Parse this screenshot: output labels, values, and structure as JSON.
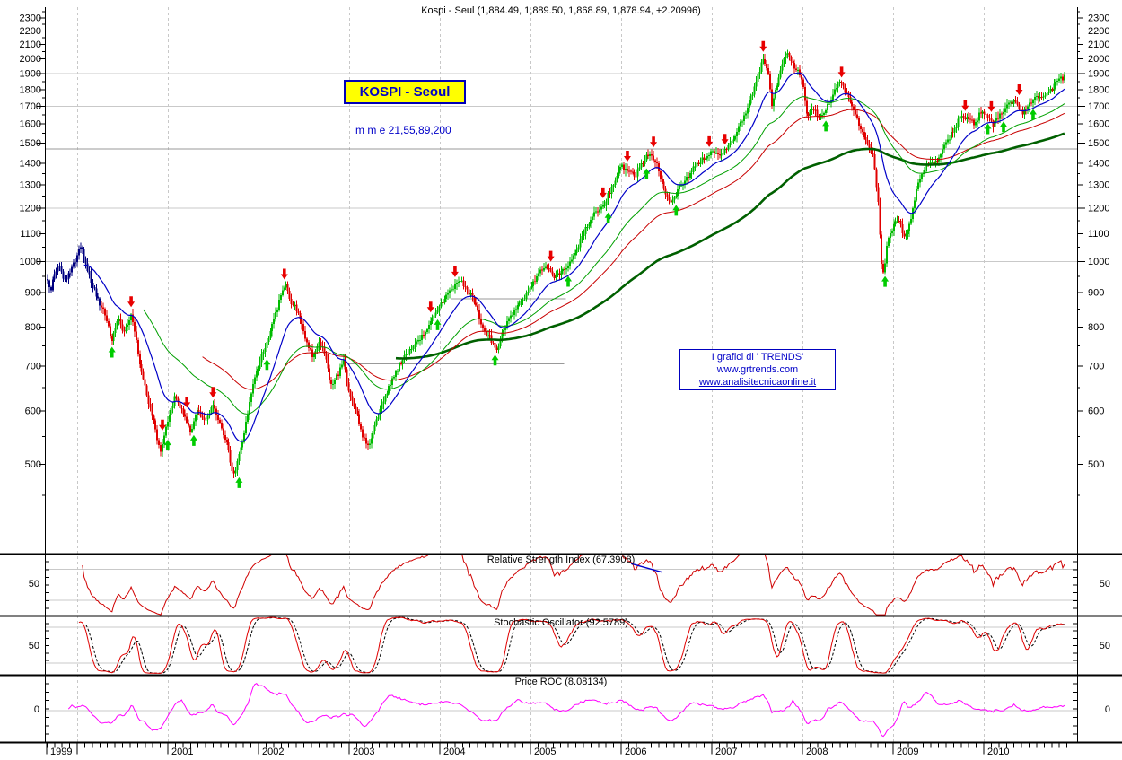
{
  "title": "Kospi - Seul (1,884.49, 1,889.50, 1,868.89, 1,878.94, +2.20996)",
  "quote": {
    "open": 1884.49,
    "high": 1889.5,
    "low": 1868.89,
    "close": 1878.94,
    "change": 2.20996
  },
  "overlays": {
    "symbol_box": "KOSPI - Seoul",
    "mme_label": "m m e 21,55,89,200",
    "credit": {
      "line1": "I grafici di ' TRENDS'",
      "line2": "www.grtrends.com",
      "line3": "www.analisitecnicaonline.it"
    }
  },
  "panels": {
    "rsi": {
      "label": "Relative Strength Index (67.3908)",
      "value": 67.3908,
      "left_tick": "50",
      "right_tick": "50",
      "gridlines": [
        70,
        30
      ]
    },
    "stoch": {
      "label": "Stochastic Oscillator (92.5789)",
      "value": 92.5789,
      "left_tick": "50",
      "right_tick": "50",
      "gridlines": [
        80,
        20
      ]
    },
    "roc": {
      "label": "Price ROC (8.08134)",
      "value": 8.08134,
      "left_tick": "0",
      "right_tick": "0",
      "gridlines": [
        0
      ]
    }
  },
  "chart_data": {
    "type": "candlestick",
    "symbol": "KOSPI - Seoul",
    "frequency": "weekly",
    "log_scale": true,
    "axis": {
      "t0": 1999.673,
      "t1": 2010.89,
      "price_labels": [
        500,
        600,
        700,
        800,
        900,
        1000,
        1100,
        1200,
        1300,
        1400,
        1500,
        1600,
        1700,
        1800,
        1900,
        2000,
        2100,
        2200,
        2300
      ],
      "grid_prices": [
        1000,
        1200,
        1700,
        1900
      ],
      "long_tick_prices": [
        1000,
        1200,
        1500,
        1700,
        1900
      ],
      "resistance_price": 1470,
      "year_labels": [
        1999,
        2001,
        2002,
        2003,
        2004,
        2005,
        2006,
        2007,
        2008,
        2009,
        2010
      ]
    },
    "support_segments": [
      {
        "price": 705,
        "t1": 2002.99,
        "t2": 2005.37
      },
      {
        "price": 880,
        "t1": 2004.12,
        "t2": 2005.39
      }
    ],
    "moving_averages": {
      "label": "mme 21,55,89,200",
      "periods": [
        21,
        55,
        89,
        200
      ]
    },
    "indicators": {
      "rsi_period": 14,
      "stoch_period": 14,
      "stoch_slowing": 5,
      "roc_period": 12
    },
    "rsi_trendline": {
      "t1": 2006.11,
      "v1": 77,
      "t2": 2006.45,
      "v2": 66
    },
    "signals": {
      "sell": [
        2000.6,
        2000.95,
        2001.2,
        2001.5,
        2002.28,
        2003.9,
        2004.17,
        2005.22,
        2005.8,
        2006.06,
        2006.35,
        2006.98,
        2007.15,
        2007.57,
        2008.44,
        2009.8,
        2010.08,
        2010.4
      ],
      "buy": [
        2000.39,
        2001.0,
        2001.29,
        2001.79,
        2002.1,
        2003.98,
        2004.61,
        2005.41,
        2005.86,
        2006.28,
        2006.61,
        2008.26,
        2008.91,
        2010.04,
        2010.22,
        2010.55
      ]
    },
    "price_anchors": [
      [
        1999.673,
        940
      ],
      [
        1999.7,
        900
      ],
      [
        1999.75,
        960
      ],
      [
        1999.8,
        990
      ],
      [
        1999.85,
        930
      ],
      [
        1999.92,
        960
      ],
      [
        2000.0,
        1020
      ],
      [
        2000.04,
        1055
      ],
      [
        2000.1,
        990
      ],
      [
        2000.16,
        930
      ],
      [
        2000.22,
        880
      ],
      [
        2000.3,
        840
      ],
      [
        2000.38,
        760
      ],
      [
        2000.45,
        820
      ],
      [
        2000.52,
        780
      ],
      [
        2000.6,
        840
      ],
      [
        2000.68,
        720
      ],
      [
        2000.76,
        640
      ],
      [
        2000.84,
        580
      ],
      [
        2000.92,
        520
      ],
      [
        2001.0,
        580
      ],
      [
        2001.08,
        630
      ],
      [
        2001.16,
        600
      ],
      [
        2001.25,
        560
      ],
      [
        2001.33,
        600
      ],
      [
        2001.42,
        580
      ],
      [
        2001.5,
        610
      ],
      [
        2001.58,
        570
      ],
      [
        2001.65,
        540
      ],
      [
        2001.72,
        475
      ],
      [
        2001.78,
        510
      ],
      [
        2001.85,
        560
      ],
      [
        2001.92,
        640
      ],
      [
        2002.0,
        700
      ],
      [
        2002.08,
        750
      ],
      [
        2002.16,
        810
      ],
      [
        2002.24,
        880
      ],
      [
        2002.3,
        930
      ],
      [
        2002.36,
        870
      ],
      [
        2002.44,
        840
      ],
      [
        2002.52,
        770
      ],
      [
        2002.6,
        720
      ],
      [
        2002.66,
        760
      ],
      [
        2002.72,
        740
      ],
      [
        2002.8,
        650
      ],
      [
        2002.88,
        680
      ],
      [
        2002.94,
        710
      ],
      [
        2003.0,
        640
      ],
      [
        2003.08,
        600
      ],
      [
        2003.16,
        545
      ],
      [
        2003.22,
        530
      ],
      [
        2003.3,
        580
      ],
      [
        2003.4,
        630
      ],
      [
        2003.5,
        680
      ],
      [
        2003.6,
        720
      ],
      [
        2003.7,
        750
      ],
      [
        2003.8,
        770
      ],
      [
        2003.9,
        810
      ],
      [
        2004.0,
        855
      ],
      [
        2004.08,
        890
      ],
      [
        2004.16,
        920
      ],
      [
        2004.24,
        935
      ],
      [
        2004.32,
        900
      ],
      [
        2004.4,
        860
      ],
      [
        2004.48,
        790
      ],
      [
        2004.56,
        770
      ],
      [
        2004.62,
        735
      ],
      [
        2004.7,
        790
      ],
      [
        2004.78,
        830
      ],
      [
        2004.86,
        860
      ],
      [
        2004.94,
        885
      ],
      [
        2005.02,
        920
      ],
      [
        2005.1,
        965
      ],
      [
        2005.18,
        985
      ],
      [
        2005.26,
        945
      ],
      [
        2005.34,
        960
      ],
      [
        2005.42,
        985
      ],
      [
        2005.52,
        1045
      ],
      [
        2005.62,
        1130
      ],
      [
        2005.72,
        1180
      ],
      [
        2005.82,
        1220
      ],
      [
        2005.9,
        1290
      ],
      [
        2006.0,
        1390
      ],
      [
        2006.08,
        1350
      ],
      [
        2006.16,
        1340
      ],
      [
        2006.24,
        1400
      ],
      [
        2006.32,
        1450
      ],
      [
        2006.4,
        1380
      ],
      [
        2006.48,
        1270
      ],
      [
        2006.55,
        1215
      ],
      [
        2006.62,
        1270
      ],
      [
        2006.7,
        1320
      ],
      [
        2006.78,
        1360
      ],
      [
        2006.86,
        1400
      ],
      [
        2006.94,
        1435
      ],
      [
        2007.02,
        1460
      ],
      [
        2007.1,
        1440
      ],
      [
        2007.18,
        1475
      ],
      [
        2007.26,
        1540
      ],
      [
        2007.34,
        1620
      ],
      [
        2007.42,
        1720
      ],
      [
        2007.5,
        1870
      ],
      [
        2007.56,
        1990
      ],
      [
        2007.62,
        1920
      ],
      [
        2007.66,
        1700
      ],
      [
        2007.72,
        1830
      ],
      [
        2007.78,
        1950
      ],
      [
        2007.83,
        2050
      ],
      [
        2007.88,
        1980
      ],
      [
        2007.94,
        1920
      ],
      [
        2008.0,
        1860
      ],
      [
        2008.05,
        1650
      ],
      [
        2008.12,
        1680
      ],
      [
        2008.2,
        1630
      ],
      [
        2008.28,
        1700
      ],
      [
        2008.36,
        1800
      ],
      [
        2008.42,
        1840
      ],
      [
        2008.5,
        1760
      ],
      [
        2008.58,
        1650
      ],
      [
        2008.66,
        1560
      ],
      [
        2008.72,
        1500
      ],
      [
        2008.78,
        1430
      ],
      [
        2008.83,
        1250
      ],
      [
        2008.87,
        1000
      ],
      [
        2008.9,
        950
      ],
      [
        2008.94,
        1080
      ],
      [
        2009.0,
        1120
      ],
      [
        2009.06,
        1160
      ],
      [
        2009.12,
        1080
      ],
      [
        2009.18,
        1130
      ],
      [
        2009.26,
        1280
      ],
      [
        2009.34,
        1370
      ],
      [
        2009.42,
        1400
      ],
      [
        2009.5,
        1420
      ],
      [
        2009.58,
        1490
      ],
      [
        2009.66,
        1560
      ],
      [
        2009.74,
        1640
      ],
      [
        2009.82,
        1630
      ],
      [
        2009.9,
        1600
      ],
      [
        2009.98,
        1680
      ],
      [
        2010.04,
        1640
      ],
      [
        2010.1,
        1590
      ],
      [
        2010.18,
        1650
      ],
      [
        2010.26,
        1710
      ],
      [
        2010.34,
        1730
      ],
      [
        2010.42,
        1650
      ],
      [
        2010.5,
        1720
      ],
      [
        2010.58,
        1750
      ],
      [
        2010.66,
        1740
      ],
      [
        2010.74,
        1790
      ],
      [
        2010.82,
        1850
      ],
      [
        2010.89,
        1880
      ]
    ],
    "colors": {
      "up": "#00BB00",
      "down": "#E00000",
      "early": "#000080",
      "mme21": "#0000C8",
      "mme55": "#00A000",
      "mme89": "#C80000",
      "mme200": "#006000",
      "rsi": "#D00000",
      "stoch_k": "#E00000",
      "stoch_d": "#000000",
      "roc": "#FF00FF",
      "grid": "#C9C9C9",
      "grid_dark": "#999999",
      "year_dash": "#C8C8C8",
      "axis": "#000000",
      "arrow_up": "#00CC00",
      "arrow_down": "#E80000",
      "trendline": "#0000CC"
    }
  }
}
